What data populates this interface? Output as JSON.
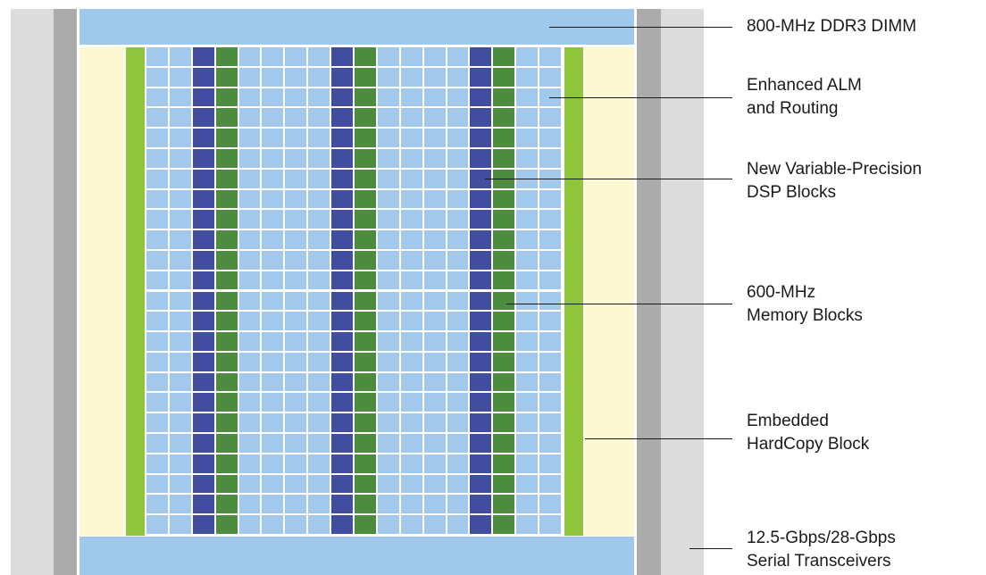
{
  "callouts": [
    {
      "id": "ddr3",
      "lines": [
        "800-MHz DDR3 DIMM"
      ]
    },
    {
      "id": "alm",
      "lines": [
        "Enhanced ALM",
        "and Routing"
      ]
    },
    {
      "id": "dsp",
      "lines": [
        "New Variable-Precision",
        "DSP Blocks"
      ]
    },
    {
      "id": "memory",
      "lines": [
        "600-MHz",
        "Memory Blocks"
      ]
    },
    {
      "id": "hardcopy",
      "lines": [
        "Embedded",
        "HardCopy Block"
      ]
    },
    {
      "id": "transceivers",
      "lines": [
        "12.5-Gbps/28-Gbps",
        "Serial Transceivers"
      ]
    }
  ],
  "colors": {
    "edge_panel": "#dcdcdc",
    "gray_bar": "#ababab",
    "ddr_bar": "#a0c8ea",
    "hardcopy": "#fcf8d2",
    "io_column": "#8fc53d",
    "alm_cell": "#a2c9ec",
    "dsp_block": "#434da0",
    "memory_block": "#4d8c3f"
  },
  "fabric": {
    "rows": 24,
    "columns": [
      "alm",
      "alm",
      "dsp",
      "memory",
      "alm",
      "alm",
      "alm",
      "alm",
      "dsp",
      "memory",
      "alm",
      "alm",
      "alm",
      "alm",
      "dsp",
      "memory",
      "alm",
      "alm"
    ]
  }
}
